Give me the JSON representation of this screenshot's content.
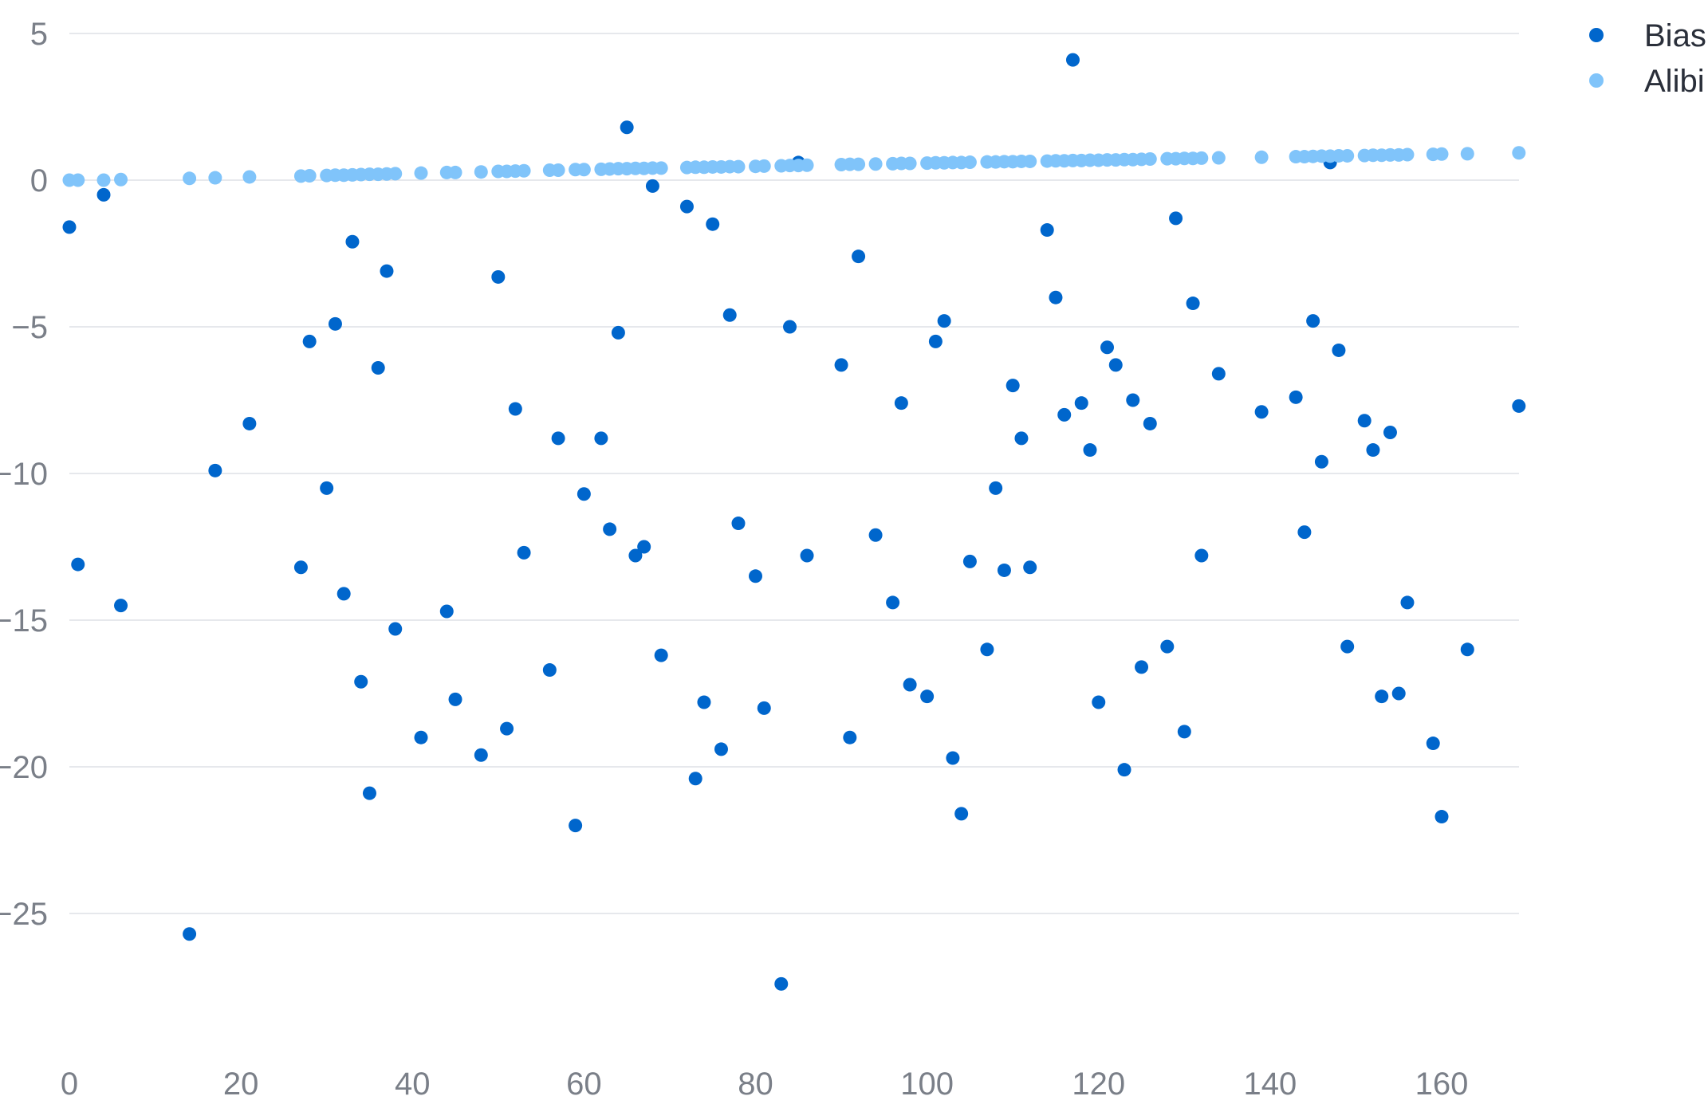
{
  "chart_data": {
    "type": "scatter",
    "title": "",
    "xlabel": "",
    "ylabel": "",
    "xlim": [
      0,
      170
    ],
    "ylim": [
      -29.5,
      5
    ],
    "x_ticks": [
      0,
      20,
      40,
      60,
      80,
      100,
      120,
      140,
      160
    ],
    "x_tick_labels": [
      "0",
      "20",
      "40",
      "60",
      "80",
      "100",
      "120",
      "140",
      "160"
    ],
    "y_ticks": [
      5,
      0,
      -5,
      -10,
      -15,
      -20,
      -25
    ],
    "y_tick_labels": [
      "5",
      "0",
      "−5",
      "−10",
      "−15",
      "−20",
      "−25"
    ],
    "grid": true,
    "legend_position": "top-right",
    "series": [
      {
        "name": "Bias",
        "color": "#0066cc",
        "points": [
          [
            0,
            -1.6
          ],
          [
            1,
            -13.1
          ],
          [
            4,
            -0.5
          ],
          [
            6,
            -14.5
          ],
          [
            14,
            -25.7
          ],
          [
            17,
            -9.9
          ],
          [
            21,
            -8.3
          ],
          [
            27,
            -13.2
          ],
          [
            28,
            -5.5
          ],
          [
            30,
            -10.5
          ],
          [
            31,
            -4.9
          ],
          [
            32,
            -14.1
          ],
          [
            33,
            -2.1
          ],
          [
            34,
            -17.1
          ],
          [
            35,
            -20.9
          ],
          [
            36,
            -6.4
          ],
          [
            37,
            -3.1
          ],
          [
            38,
            -15.3
          ],
          [
            41,
            -19.0
          ],
          [
            44,
            -14.7
          ],
          [
            45,
            -17.7
          ],
          [
            48,
            -19.6
          ],
          [
            50,
            -3.3
          ],
          [
            51,
            -18.7
          ],
          [
            52,
            -7.8
          ],
          [
            53,
            -12.7
          ],
          [
            56,
            -16.7
          ],
          [
            57,
            -8.8
          ],
          [
            59,
            -22.0
          ],
          [
            60,
            -10.7
          ],
          [
            62,
            -8.8
          ],
          [
            63,
            -11.9
          ],
          [
            64,
            -5.2
          ],
          [
            65,
            1.8
          ],
          [
            66,
            -12.8
          ],
          [
            67,
            -12.5
          ],
          [
            68,
            -0.2
          ],
          [
            69,
            -16.2
          ],
          [
            72,
            -0.9
          ],
          [
            73,
            -20.4
          ],
          [
            74,
            -17.8
          ],
          [
            75,
            -1.5
          ],
          [
            76,
            -19.4
          ],
          [
            77,
            -4.6
          ],
          [
            78,
            -11.7
          ],
          [
            80,
            -13.5
          ],
          [
            81,
            -18.0
          ],
          [
            83,
            -27.4
          ],
          [
            84,
            -5.0
          ],
          [
            85,
            0.6
          ],
          [
            86,
            -12.8
          ],
          [
            90,
            -6.3
          ],
          [
            91,
            -19.0
          ],
          [
            92,
            -2.6
          ],
          [
            94,
            -12.1
          ],
          [
            96,
            -14.4
          ],
          [
            97,
            -7.6
          ],
          [
            98,
            -17.2
          ],
          [
            100,
            -17.6
          ],
          [
            101,
            -5.5
          ],
          [
            102,
            -4.8
          ],
          [
            103,
            -19.7
          ],
          [
            104,
            -21.6
          ],
          [
            105,
            -13.0
          ],
          [
            107,
            -16.0
          ],
          [
            108,
            -10.5
          ],
          [
            109,
            -13.3
          ],
          [
            110,
            -7.0
          ],
          [
            111,
            -8.8
          ],
          [
            112,
            -13.2
          ],
          [
            114,
            -1.7
          ],
          [
            115,
            -4.0
          ],
          [
            116,
            -8.0
          ],
          [
            117,
            4.1
          ],
          [
            118,
            -7.6
          ],
          [
            119,
            -9.2
          ],
          [
            120,
            -17.8
          ],
          [
            121,
            -5.7
          ],
          [
            122,
            -6.3
          ],
          [
            123,
            -20.1
          ],
          [
            124,
            -7.5
          ],
          [
            125,
            -16.6
          ],
          [
            126,
            -8.3
          ],
          [
            128,
            -15.9
          ],
          [
            129,
            -1.3
          ],
          [
            130,
            -18.8
          ],
          [
            131,
            -4.2
          ],
          [
            132,
            -12.8
          ],
          [
            134,
            -6.6
          ],
          [
            139,
            -7.9
          ],
          [
            143,
            -7.4
          ],
          [
            144,
            -12.0
          ],
          [
            145,
            -4.8
          ],
          [
            146,
            -9.6
          ],
          [
            147,
            0.6
          ],
          [
            148,
            -5.8
          ],
          [
            149,
            -15.9
          ],
          [
            151,
            -8.2
          ],
          [
            152,
            -9.2
          ],
          [
            153,
            -17.6
          ],
          [
            154,
            -8.6
          ],
          [
            155,
            -17.5
          ],
          [
            156,
            -14.4
          ],
          [
            159,
            -19.2
          ],
          [
            160,
            -21.7
          ],
          [
            163,
            -16.0
          ],
          [
            169,
            -7.7
          ]
        ]
      },
      {
        "name": "Alibi",
        "color": "#80c4fa",
        "points": [
          [
            0,
            0.0
          ],
          [
            1,
            0.0
          ],
          [
            4,
            0.0
          ],
          [
            6,
            0.02
          ],
          [
            14,
            0.06
          ],
          [
            17,
            0.08
          ],
          [
            21,
            0.11
          ],
          [
            27,
            0.14
          ],
          [
            28,
            0.15
          ],
          [
            30,
            0.16
          ],
          [
            31,
            0.17
          ],
          [
            32,
            0.17
          ],
          [
            33,
            0.18
          ],
          [
            34,
            0.19
          ],
          [
            35,
            0.2
          ],
          [
            36,
            0.2
          ],
          [
            37,
            0.21
          ],
          [
            38,
            0.22
          ],
          [
            41,
            0.24
          ],
          [
            44,
            0.26
          ],
          [
            45,
            0.26
          ],
          [
            48,
            0.28
          ],
          [
            50,
            0.3
          ],
          [
            51,
            0.3
          ],
          [
            52,
            0.31
          ],
          [
            53,
            0.32
          ],
          [
            56,
            0.34
          ],
          [
            57,
            0.34
          ],
          [
            59,
            0.36
          ],
          [
            60,
            0.36
          ],
          [
            62,
            0.37
          ],
          [
            63,
            0.38
          ],
          [
            64,
            0.39
          ],
          [
            65,
            0.39
          ],
          [
            66,
            0.4
          ],
          [
            67,
            0.4
          ],
          [
            68,
            0.41
          ],
          [
            69,
            0.41
          ],
          [
            72,
            0.43
          ],
          [
            73,
            0.44
          ],
          [
            74,
            0.44
          ],
          [
            75,
            0.45
          ],
          [
            76,
            0.45
          ],
          [
            77,
            0.46
          ],
          [
            78,
            0.46
          ],
          [
            80,
            0.47
          ],
          [
            81,
            0.48
          ],
          [
            83,
            0.49
          ],
          [
            84,
            0.5
          ],
          [
            85,
            0.5
          ],
          [
            86,
            0.51
          ],
          [
            90,
            0.53
          ],
          [
            91,
            0.54
          ],
          [
            92,
            0.54
          ],
          [
            94,
            0.55
          ],
          [
            96,
            0.56
          ],
          [
            97,
            0.57
          ],
          [
            98,
            0.57
          ],
          [
            100,
            0.58
          ],
          [
            101,
            0.59
          ],
          [
            102,
            0.59
          ],
          [
            103,
            0.6
          ],
          [
            104,
            0.6
          ],
          [
            105,
            0.61
          ],
          [
            107,
            0.62
          ],
          [
            108,
            0.62
          ],
          [
            109,
            0.63
          ],
          [
            110,
            0.63
          ],
          [
            111,
            0.64
          ],
          [
            112,
            0.64
          ],
          [
            114,
            0.65
          ],
          [
            115,
            0.66
          ],
          [
            116,
            0.66
          ],
          [
            117,
            0.67
          ],
          [
            118,
            0.67
          ],
          [
            119,
            0.68
          ],
          [
            120,
            0.68
          ],
          [
            121,
            0.69
          ],
          [
            122,
            0.69
          ],
          [
            123,
            0.7
          ],
          [
            124,
            0.7
          ],
          [
            125,
            0.71
          ],
          [
            126,
            0.72
          ],
          [
            128,
            0.73
          ],
          [
            129,
            0.73
          ],
          [
            130,
            0.74
          ],
          [
            131,
            0.74
          ],
          [
            132,
            0.75
          ],
          [
            134,
            0.76
          ],
          [
            139,
            0.78
          ],
          [
            143,
            0.8
          ],
          [
            144,
            0.8
          ],
          [
            145,
            0.81
          ],
          [
            146,
            0.82
          ],
          [
            147,
            0.82
          ],
          [
            148,
            0.83
          ],
          [
            149,
            0.83
          ],
          [
            151,
            0.84
          ],
          [
            152,
            0.85
          ],
          [
            153,
            0.85
          ],
          [
            154,
            0.86
          ],
          [
            155,
            0.86
          ],
          [
            156,
            0.87
          ],
          [
            159,
            0.88
          ],
          [
            160,
            0.89
          ],
          [
            163,
            0.9
          ],
          [
            169,
            0.93
          ]
        ]
      }
    ]
  }
}
